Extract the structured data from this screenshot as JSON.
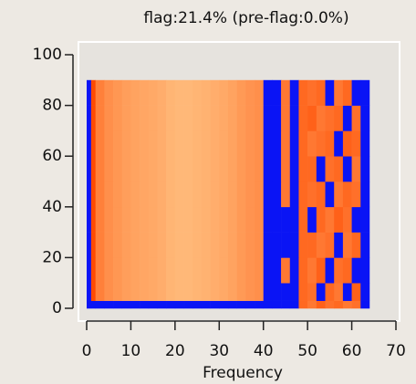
{
  "chart_data": {
    "type": "heatmap",
    "title": "flag:21.4% (pre-flag:0.0%)",
    "xlabel": "Frequency",
    "xlim": [
      0,
      70
    ],
    "ylim": [
      0,
      100
    ],
    "xticks": [
      0,
      10,
      20,
      30,
      40,
      50,
      60,
      70
    ],
    "yticks": [
      0,
      20,
      40,
      60,
      80,
      100
    ],
    "xbins": [
      0,
      1,
      2,
      4,
      6,
      8,
      10,
      12,
      14,
      16,
      18,
      20,
      22,
      24,
      26,
      28,
      30,
      32,
      34,
      36,
      38,
      40,
      42,
      44,
      46,
      48,
      50,
      52,
      54,
      56,
      58,
      60,
      62,
      64
    ],
    "ybins": [
      0,
      3,
      10,
      20,
      30,
      40,
      50,
      60,
      70,
      80,
      90
    ],
    "zlim": [
      0,
      1
    ],
    "colormap": [
      "#ffe3a6",
      "#ff4a00"
    ],
    "flag_color": "#0a14f5",
    "values": [
      [
        null,
        null,
        null,
        null,
        null,
        null,
        null,
        null,
        null,
        null,
        null,
        null,
        null,
        null,
        null,
        null,
        null,
        null,
        null,
        null,
        null,
        null,
        null,
        null,
        null,
        0.8,
        0.7,
        0.85,
        0.75,
        0.8,
        0.7,
        0.75,
        null
      ],
      [
        null,
        1.0,
        0.65,
        0.55,
        0.5,
        0.45,
        0.42,
        0.4,
        0.38,
        0.35,
        0.3,
        0.28,
        0.28,
        0.3,
        0.32,
        0.35,
        0.38,
        0.42,
        0.48,
        0.52,
        0.55,
        null,
        null,
        null,
        null,
        0.8,
        0.75,
        null,
        0.8,
        0.7,
        null,
        0.85,
        null
      ],
      [
        null,
        1.0,
        0.65,
        0.55,
        0.5,
        0.45,
        0.42,
        0.4,
        0.38,
        0.35,
        0.3,
        0.28,
        0.28,
        0.3,
        0.32,
        0.35,
        0.38,
        0.42,
        0.48,
        0.52,
        0.55,
        null,
        null,
        0.7,
        null,
        0.8,
        0.7,
        0.85,
        null,
        0.75,
        0.8,
        null,
        null
      ],
      [
        null,
        1.0,
        0.65,
        0.55,
        0.5,
        0.45,
        0.42,
        0.4,
        0.38,
        0.35,
        0.3,
        0.28,
        0.28,
        0.3,
        0.32,
        0.35,
        0.38,
        0.42,
        0.48,
        0.52,
        0.55,
        null,
        null,
        null,
        null,
        0.8,
        0.8,
        0.7,
        0.75,
        null,
        0.7,
        0.8,
        null
      ],
      [
        null,
        1.0,
        0.65,
        0.55,
        0.5,
        0.45,
        0.42,
        0.4,
        0.38,
        0.35,
        0.3,
        0.28,
        0.28,
        0.3,
        0.32,
        0.35,
        0.38,
        0.42,
        0.48,
        0.52,
        0.55,
        null,
        null,
        null,
        null,
        0.8,
        null,
        0.8,
        0.7,
        0.85,
        0.75,
        null,
        null
      ],
      [
        null,
        1.0,
        0.65,
        0.55,
        0.5,
        0.45,
        0.42,
        0.4,
        0.38,
        0.35,
        0.3,
        0.28,
        0.28,
        0.3,
        0.32,
        0.35,
        0.38,
        0.42,
        0.48,
        0.52,
        0.55,
        null,
        null,
        0.7,
        null,
        0.8,
        0.75,
        0.8,
        null,
        0.7,
        0.8,
        0.75,
        null
      ],
      [
        null,
        1.0,
        0.65,
        0.55,
        0.5,
        0.45,
        0.42,
        0.4,
        0.38,
        0.35,
        0.3,
        0.28,
        0.28,
        0.3,
        0.32,
        0.35,
        0.38,
        0.42,
        0.48,
        0.52,
        0.55,
        null,
        null,
        0.7,
        null,
        0.8,
        0.8,
        null,
        0.75,
        0.8,
        null,
        0.7,
        null
      ],
      [
        null,
        1.0,
        0.65,
        0.55,
        0.5,
        0.45,
        0.42,
        0.4,
        0.38,
        0.35,
        0.3,
        0.28,
        0.28,
        0.3,
        0.32,
        0.35,
        0.38,
        0.42,
        0.48,
        0.52,
        0.55,
        null,
        null,
        0.7,
        null,
        0.8,
        0.7,
        0.75,
        0.8,
        null,
        0.85,
        0.8,
        null
      ],
      [
        null,
        1.0,
        0.65,
        0.55,
        0.5,
        0.45,
        0.42,
        0.4,
        0.38,
        0.35,
        0.3,
        0.28,
        0.28,
        0.3,
        0.32,
        0.35,
        0.38,
        0.42,
        0.48,
        0.52,
        0.55,
        null,
        null,
        0.7,
        null,
        0.8,
        0.85,
        0.7,
        0.75,
        0.8,
        null,
        0.75,
        null
      ],
      [
        null,
        1.0,
        0.65,
        0.55,
        0.5,
        0.45,
        0.42,
        0.4,
        0.38,
        0.35,
        0.3,
        0.28,
        0.28,
        0.3,
        0.32,
        0.35,
        0.38,
        0.42,
        0.48,
        0.52,
        0.55,
        null,
        null,
        0.7,
        null,
        0.8,
        0.75,
        0.8,
        null,
        0.7,
        0.8,
        null,
        null
      ]
    ]
  }
}
